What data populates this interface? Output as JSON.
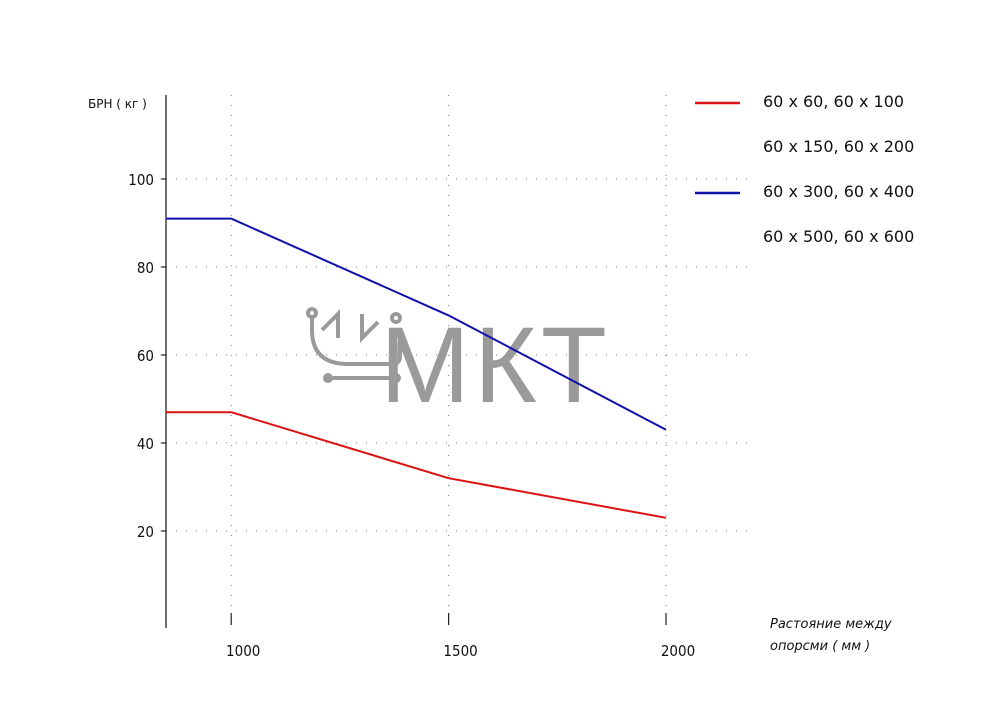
{
  "chart_data": {
    "type": "line",
    "ylabel": "БРН ( кг )",
    "xlabel_line1": "Растояние между",
    "xlabel_line2": "опорсми     ( мм )",
    "x_ticks": [
      1000,
      1500,
      2000
    ],
    "y_ticks": [
      20,
      40,
      60,
      80,
      100
    ],
    "xlim": [
      850,
      2000
    ],
    "ylim": [
      0,
      120
    ],
    "grid": true,
    "legend_position": "top-right",
    "series": [
      {
        "name": "60 x 60, 60 x 100",
        "color": "#dd1111",
        "x": [
          850,
          1000,
          1500,
          2000
        ],
        "y": [
          47,
          47,
          32,
          23
        ]
      },
      {
        "name": "60 x 300, 60 x 400",
        "color": "#1111aa",
        "x": [
          850,
          1000,
          1500,
          2000
        ],
        "y": [
          91,
          91,
          69,
          43
        ]
      }
    ],
    "legend": [
      {
        "label": "60 x 60, 60 x 100",
        "color": "#dd1111",
        "has_line": true
      },
      {
        "label": "60 x 150, 60 x 200",
        "color": "",
        "has_line": false
      },
      {
        "label": "60 x 300, 60 x 400",
        "color": "#1111aa",
        "has_line": true
      },
      {
        "label": "60 x 500, 60 x 600",
        "color": "",
        "has_line": false
      }
    ]
  },
  "watermark": {
    "text": "МКТ",
    "logo": "cart-icon"
  }
}
